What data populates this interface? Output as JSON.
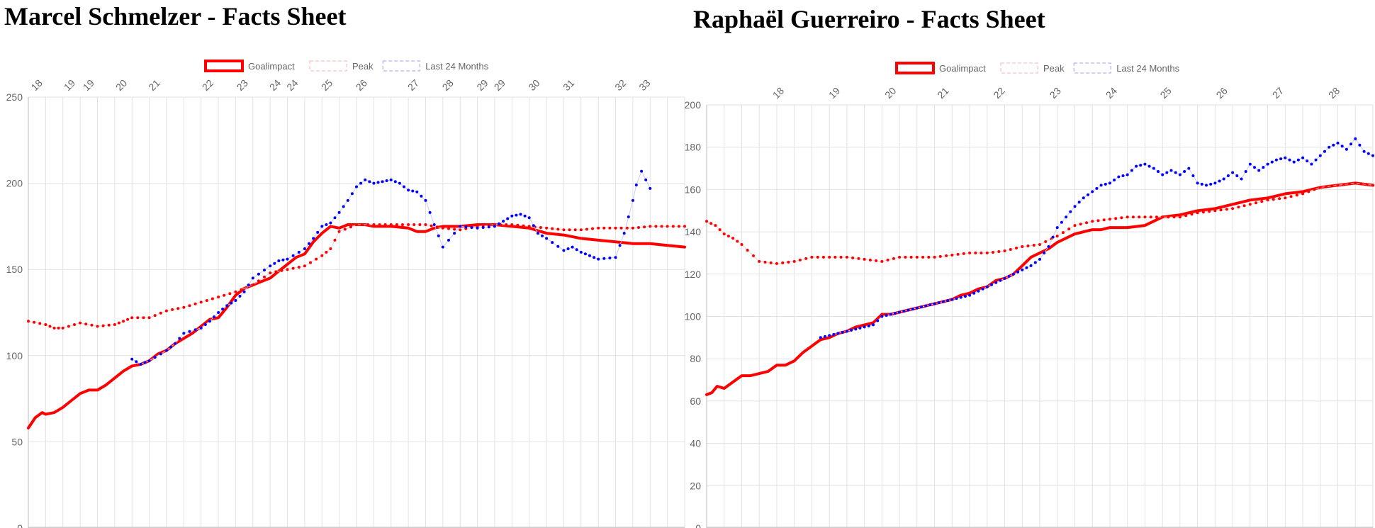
{
  "legend": {
    "goalimpact": "Goalimpact",
    "peak": "Peak",
    "last24": "Last 24 Months"
  },
  "colors": {
    "goalimpact": "#ff0000",
    "peak": "#ff0000",
    "last24": "#0000ff",
    "grid": "#e2e2e2",
    "axis_text": "#666666"
  },
  "chart_data": [
    {
      "type": "line",
      "title": "Marcel Schmelzer - Facts Sheet",
      "ylim": [
        0,
        250
      ],
      "yticks": [
        0,
        50,
        100,
        150,
        200,
        250
      ],
      "xlim": [
        0,
        38
      ],
      "top_age_labels": [
        {
          "x": 0.4,
          "label": "18"
        },
        {
          "x": 2.3,
          "label": "19"
        },
        {
          "x": 3.4,
          "label": "19"
        },
        {
          "x": 5.3,
          "label": "20"
        },
        {
          "x": 7.2,
          "label": "21"
        },
        {
          "x": 10.3,
          "label": "22"
        },
        {
          "x": 12.3,
          "label": "23"
        },
        {
          "x": 14.2,
          "label": "24"
        },
        {
          "x": 15.2,
          "label": "24"
        },
        {
          "x": 17.2,
          "label": "25"
        },
        {
          "x": 19.2,
          "label": "26"
        },
        {
          "x": 22.2,
          "label": "27"
        },
        {
          "x": 24.2,
          "label": "28"
        },
        {
          "x": 26.2,
          "label": "29"
        },
        {
          "x": 27.2,
          "label": "29"
        },
        {
          "x": 29.2,
          "label": "30"
        },
        {
          "x": 31.2,
          "label": "31"
        },
        {
          "x": 34.2,
          "label": "32"
        },
        {
          "x": 35.6,
          "label": "33"
        }
      ],
      "grid": true,
      "legend_position": "top",
      "series": [
        {
          "name": "Goalimpact",
          "style": "thick-line",
          "x": [
            0,
            0.4,
            0.8,
            1,
            1.5,
            2,
            2.5,
            3,
            3.5,
            4,
            4.5,
            5,
            5.5,
            6,
            6.5,
            7,
            7.5,
            8,
            8.5,
            9,
            9.5,
            10,
            10.5,
            11,
            11.5,
            12,
            12.5,
            13,
            13.5,
            14,
            14.5,
            15,
            15.5,
            16,
            16.5,
            17,
            17.5,
            18,
            18.5,
            19,
            19.5,
            20,
            21,
            22,
            22.5,
            23,
            23.5,
            24,
            25,
            26,
            27,
            28,
            29,
            30,
            31,
            32,
            33,
            34,
            35,
            36,
            37,
            38
          ],
          "y": [
            58,
            64,
            67,
            66,
            67,
            70,
            74,
            78,
            80,
            80,
            83,
            87,
            91,
            94,
            95,
            97,
            101,
            103,
            107,
            110,
            113,
            117,
            121,
            122,
            128,
            135,
            139,
            141,
            143,
            145,
            149,
            153,
            157,
            159,
            166,
            171,
            175,
            174,
            176,
            176,
            176,
            175,
            175,
            174,
            172,
            172,
            174,
            175,
            175,
            176,
            176,
            175,
            174,
            171,
            170,
            168,
            167,
            166,
            165,
            165,
            164,
            163
          ]
        },
        {
          "name": "Peak",
          "style": "dotted",
          "x": [
            0,
            1,
            1.5,
            2,
            3,
            4,
            5,
            5.5,
            6,
            7,
            8,
            9,
            10,
            11,
            12,
            13,
            14,
            15,
            16,
            17,
            17.5,
            18,
            19,
            20,
            21,
            22,
            23,
            24,
            25,
            26,
            27,
            28,
            29,
            30,
            31,
            32,
            33,
            34,
            35,
            36,
            37,
            38
          ],
          "y": [
            120,
            118,
            116,
            116,
            119,
            117,
            118,
            120,
            122,
            122,
            126,
            128,
            131,
            134,
            137,
            141,
            148,
            150,
            152,
            158,
            162,
            172,
            176,
            176,
            176,
            176,
            176,
            174,
            173,
            175,
            176,
            176,
            175,
            174,
            173,
            173,
            174,
            174,
            174,
            175,
            175,
            175
          ]
        },
        {
          "name": "Last 24 Months",
          "style": "dotted",
          "x": [
            6,
            6.5,
            7,
            8,
            8.5,
            9,
            10,
            10.5,
            11,
            11.5,
            12,
            12.5,
            13,
            14,
            14.5,
            15,
            16,
            16.5,
            17,
            17.5,
            18,
            18.5,
            19,
            19.5,
            20,
            20.5,
            21,
            21.5,
            22,
            22.5,
            23,
            23.5,
            24,
            25,
            26,
            27,
            27.5,
            28,
            28.5,
            29,
            29.5,
            30,
            31,
            31.5,
            32,
            32.5,
            33,
            34,
            34.5,
            35,
            35.2,
            35.5,
            36
          ],
          "y": [
            98,
            95,
            97,
            103,
            107,
            113,
            116,
            120,
            125,
            129,
            132,
            137,
            145,
            152,
            155,
            156,
            162,
            168,
            175,
            177,
            183,
            190,
            198,
            202,
            200,
            201,
            202,
            200,
            196,
            195,
            190,
            176,
            163,
            175,
            174,
            175,
            178,
            181,
            182,
            180,
            171,
            168,
            161,
            163,
            160,
            158,
            156,
            157,
            171,
            190,
            199,
            207,
            197
          ]
        }
      ]
    },
    {
      "type": "line",
      "title": "Raphaël Guerreiro - Facts Sheet",
      "ylim": [
        0,
        200
      ],
      "yticks": [
        0,
        20,
        40,
        60,
        80,
        100,
        120,
        140,
        160,
        180,
        200
      ],
      "xlim": [
        0,
        38
      ],
      "top_age_labels": [
        {
          "x": 4,
          "label": "18"
        },
        {
          "x": 7.2,
          "label": "19"
        },
        {
          "x": 10.4,
          "label": "20"
        },
        {
          "x": 13.4,
          "label": "21"
        },
        {
          "x": 16.6,
          "label": "22"
        },
        {
          "x": 19.8,
          "label": "23"
        },
        {
          "x": 23,
          "label": "24"
        },
        {
          "x": 26.1,
          "label": "25"
        },
        {
          "x": 29.3,
          "label": "26"
        },
        {
          "x": 32.5,
          "label": "27"
        },
        {
          "x": 35.7,
          "label": "28"
        }
      ],
      "grid": true,
      "legend_position": "top",
      "series": [
        {
          "name": "Goalimpact",
          "style": "thick-line",
          "x": [
            0,
            0.3,
            0.6,
            1,
            1.5,
            2,
            2.5,
            3,
            3.5,
            4,
            4.5,
            5,
            5.5,
            6,
            6.5,
            7,
            7.5,
            8,
            8.5,
            9,
            9.5,
            10,
            10.5,
            11,
            11.5,
            12,
            12.5,
            13,
            13.5,
            14,
            14.5,
            15,
            15.5,
            16,
            16.5,
            17,
            17.5,
            18,
            18.5,
            19,
            19.5,
            20,
            20.5,
            21,
            21.5,
            22,
            22.5,
            23,
            24,
            25,
            26,
            27,
            28,
            29,
            30,
            31,
            32,
            33,
            34,
            35,
            36,
            37,
            38
          ],
          "y": [
            63,
            64,
            67,
            66,
            69,
            72,
            72,
            73,
            74,
            77,
            77,
            79,
            83,
            86,
            89,
            90,
            92,
            93,
            95,
            96,
            97,
            101,
            101,
            102,
            103,
            104,
            105,
            106,
            107,
            108,
            110,
            111,
            113,
            114,
            117,
            118,
            120,
            124,
            128,
            130,
            132,
            135,
            137,
            139,
            140,
            141,
            141,
            142,
            142,
            143,
            147,
            148,
            150,
            151,
            153,
            155,
            156,
            158,
            159,
            161,
            162,
            163,
            162
          ]
        },
        {
          "name": "Peak",
          "style": "dotted",
          "x": [
            0,
            0.5,
            1,
            1.5,
            2,
            3,
            4,
            5,
            6,
            7,
            8,
            9,
            10,
            11,
            12,
            13,
            14,
            15,
            16,
            17,
            18,
            19,
            20,
            21,
            22,
            23,
            24,
            25,
            26,
            27,
            28,
            29,
            30,
            31,
            32,
            33,
            34,
            35,
            36,
            37,
            38
          ],
          "y": [
            145,
            143,
            139,
            137,
            134,
            126,
            125,
            126,
            128,
            128,
            128,
            127,
            126,
            128,
            128,
            128,
            129,
            130,
            130,
            131,
            133,
            134,
            138,
            143,
            145,
            146,
            147,
            147,
            147,
            147,
            149,
            150,
            151,
            153,
            155,
            156,
            158,
            161,
            162,
            163,
            162
          ]
        },
        {
          "name": "Last 24 Months",
          "style": "dotted",
          "x": [
            6.5,
            7,
            7.5,
            8,
            8.5,
            9,
            9.5,
            10,
            10.5,
            11,
            11.5,
            12,
            12.5,
            13,
            13.5,
            14,
            14.5,
            15,
            15.5,
            16,
            16.5,
            17,
            17.5,
            18,
            18.5,
            19,
            19.5,
            20,
            20.5,
            21,
            21.5,
            22,
            22.5,
            23,
            23.5,
            24,
            24.5,
            25,
            25.5,
            26,
            26.5,
            27,
            27.5,
            28,
            28.5,
            29,
            29.5,
            30,
            30.5,
            31,
            31.5,
            32,
            32.5,
            33,
            33.5,
            34,
            34.5,
            35,
            35.5,
            36,
            36.5,
            37,
            37.5,
            38
          ],
          "y": [
            90,
            91,
            92,
            93,
            94,
            95,
            96,
            100,
            101,
            102,
            103,
            104,
            105,
            106,
            107,
            108,
            109,
            110,
            112,
            114,
            116,
            118,
            120,
            122,
            124,
            127,
            133,
            142,
            147,
            152,
            156,
            159,
            162,
            163,
            166,
            167,
            171,
            172,
            170,
            167,
            169,
            167,
            170,
            163,
            162,
            163,
            165,
            168,
            165,
            172,
            169,
            172,
            174,
            175,
            173,
            175,
            172,
            176,
            180,
            182,
            179,
            184,
            178,
            176
          ]
        }
      ]
    }
  ],
  "charts": [
    {
      "title": "Marcel Schmelzer - Facts Sheet"
    },
    {
      "title": "Raphaël Guerreiro - Facts Sheet"
    }
  ]
}
